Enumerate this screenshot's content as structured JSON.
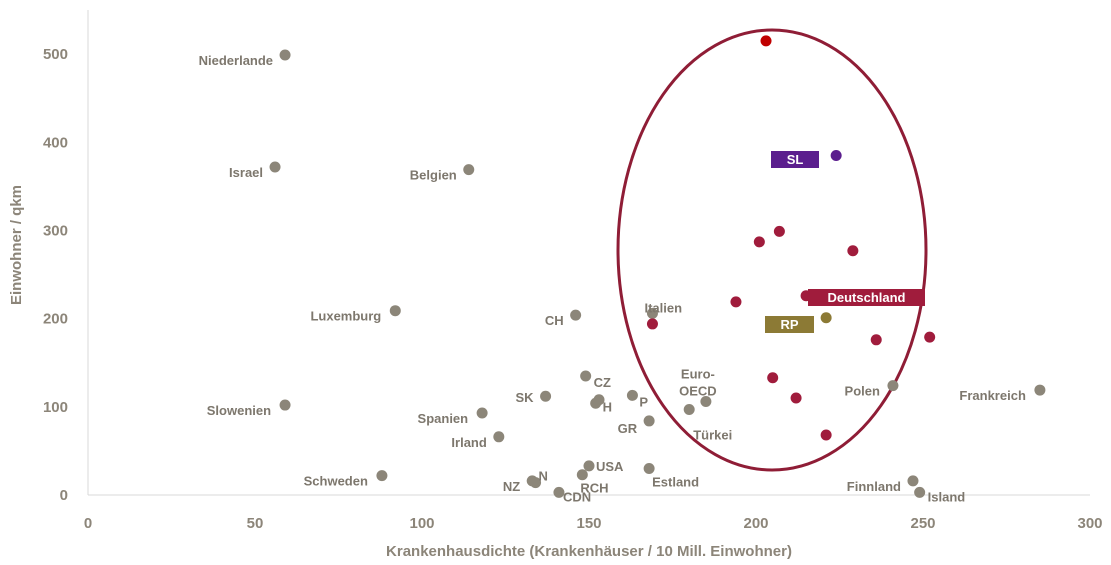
{
  "chart_data": {
    "type": "scatter",
    "xlabel": "Krankenhausdichte (Krankenhäuser / 10 Mill. Einwohner)",
    "ylabel": "Einwohner / qkm",
    "xlim": [
      0,
      300
    ],
    "ylim": [
      0,
      550
    ],
    "xticks": [
      "0",
      "50",
      "100",
      "150",
      "200",
      "250",
      "300"
    ],
    "yticks": [
      "0",
      "100",
      "200",
      "300",
      "400",
      "500"
    ],
    "grid": false,
    "colors": {
      "gray": "#8c8679",
      "state": "#a01c3c",
      "saarland": "#5b1e8e",
      "rp": "#8c7a35",
      "germany": "#a01c3c",
      "ellipse": "#8f1d36",
      "top_state": "#c00000"
    },
    "highlight_region": "ellipse",
    "countries": [
      {
        "label": "Niederlande",
        "x": 59,
        "y": 499
      },
      {
        "label": "Israel",
        "x": 56,
        "y": 372
      },
      {
        "label": "Belgien",
        "x": 114,
        "y": 369
      },
      {
        "label": "Luxemburg",
        "x": 92,
        "y": 209
      },
      {
        "label": "CH",
        "x": 146,
        "y": 204
      },
      {
        "label": "Italien",
        "x": 169,
        "y": 206
      },
      {
        "label": "Slowenien",
        "x": 59,
        "y": 102
      },
      {
        "label": "Spanien",
        "x": 118,
        "y": 93
      },
      {
        "label": "Irland",
        "x": 123,
        "y": 66
      },
      {
        "label": "SK",
        "x": 137,
        "y": 112
      },
      {
        "label": "CZ",
        "x": 149,
        "y": 135
      },
      {
        "label": "H",
        "x": 152,
        "y": 104
      },
      {
        "label": "P",
        "x": 163,
        "y": 113
      },
      {
        "label": "GR",
        "x": 168,
        "y": 84
      },
      {
        "label": "Euro-\nOECD",
        "x": 185,
        "y": 106
      },
      {
        "label": "Türkei",
        "x": 180,
        "y": 97
      },
      {
        "label": "Polen",
        "x": 241,
        "y": 124
      },
      {
        "label": "Frankreich",
        "x": 285,
        "y": 119
      },
      {
        "label": "Schweden",
        "x": 88,
        "y": 22
      },
      {
        "label": "USA",
        "x": 150,
        "y": 33
      },
      {
        "label": "N",
        "x": 134,
        "y": 14
      },
      {
        "label": "NZ",
        "x": 133,
        "y": 16
      },
      {
        "label": "RCH",
        "x": 148,
        "y": 23
      },
      {
        "label": "CDN",
        "x": 141,
        "y": 3
      },
      {
        "label": "Estland",
        "x": 168,
        "y": 30
      },
      {
        "label": "Finnland",
        "x": 247,
        "y": 16
      },
      {
        "label": "Island",
        "x": 249,
        "y": 3
      },
      {
        "label": "",
        "x": 153,
        "y": 108
      }
    ],
    "states": [
      {
        "x": 203,
        "y": 515
      },
      {
        "x": 201,
        "y": 287
      },
      {
        "x": 207,
        "y": 299
      },
      {
        "x": 229,
        "y": 277
      },
      {
        "x": 194,
        "y": 219
      },
      {
        "x": 169,
        "y": 194
      },
      {
        "x": 236,
        "y": 176
      },
      {
        "x": 252,
        "y": 179
      },
      {
        "x": 205,
        "y": 133
      },
      {
        "x": 212,
        "y": 110
      },
      {
        "x": 221,
        "y": 68
      }
    ],
    "highlighted": [
      {
        "label": "SL",
        "x": 224,
        "y": 385
      },
      {
        "label": "Deutschland",
        "x": 215,
        "y": 226
      },
      {
        "label": "RP",
        "x": 221,
        "y": 201
      }
    ]
  }
}
